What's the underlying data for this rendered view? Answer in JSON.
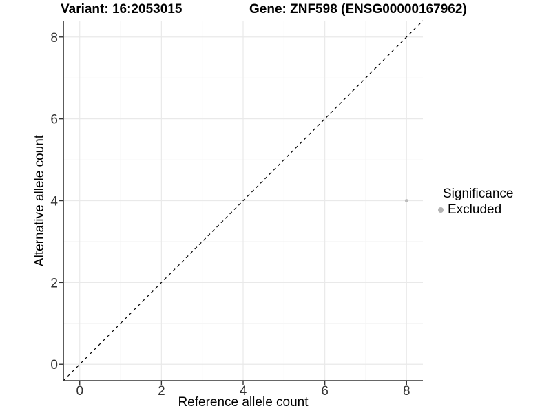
{
  "chart_data": {
    "type": "scatter",
    "titles": {
      "left": "Variant: 16:2053015",
      "right": "Gene: ZNF598 (ENSG00000167962)"
    },
    "xlabel": "Reference allele count",
    "ylabel": "Alternative allele count",
    "x_ticks": [
      0,
      2,
      4,
      6,
      8
    ],
    "y_ticks": [
      0,
      2,
      4,
      6,
      8
    ],
    "x_minor_ticks": [
      1,
      3,
      5,
      7
    ],
    "y_minor_ticks": [
      1,
      3,
      5,
      7
    ],
    "xlim": [
      -0.4,
      8.4
    ],
    "ylim": [
      -0.4,
      8.4
    ],
    "grid": true,
    "legend_position": "right",
    "identity_line": {
      "style": "dashed",
      "slope": 1,
      "intercept": 0,
      "color": "#000000"
    },
    "points": [
      {
        "x": 8,
        "y": 4,
        "significance": "Excluded",
        "color": "#bcbcbc",
        "radius": 2.4
      }
    ],
    "legend": {
      "title": "Significance",
      "entries": [
        {
          "label": "Excluded",
          "color": "#b3b3b3"
        }
      ]
    },
    "colors": {
      "axis_line": "#333333",
      "tick_mark": "#333333",
      "tick_label": "#333333",
      "grid_major": "#e9e9e9",
      "grid_minor": "#f4f4f4",
      "background": "#ffffff"
    }
  }
}
